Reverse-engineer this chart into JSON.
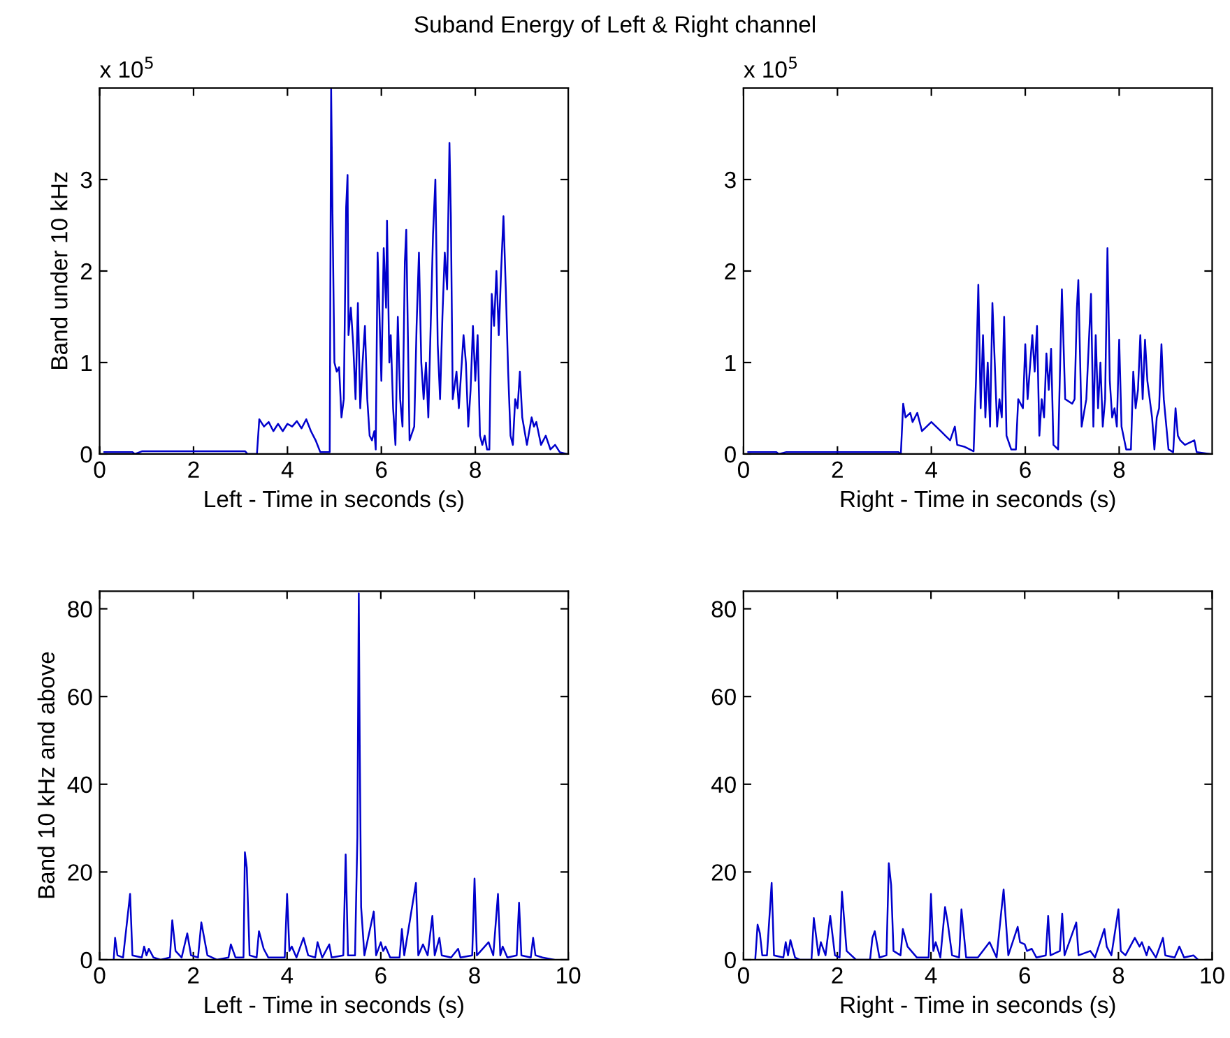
{
  "chart_data": [
    {
      "type": "line",
      "title": "Suband Energy of Left & Right channel",
      "xlabel": "Left - Time in seconds (s)",
      "ylabel": "Band under 10 kHz",
      "annotations": [
        "x 10$^{5}$"
      ],
      "series": [
        {
          "color": "#0000cc",
          "x": [
            0.1,
            0.7,
            0.75,
            0.9,
            3.1,
            3.15,
            3.35,
            3.4,
            3.5,
            3.6,
            3.7,
            3.8,
            3.9,
            4.0,
            4.1,
            4.2,
            4.3,
            4.4,
            4.5,
            4.6,
            4.7,
            4.9,
            4.93,
            4.96,
            5.0,
            5.05,
            5.1,
            5.15,
            5.2,
            5.25,
            5.28,
            5.3,
            5.35,
            5.4,
            5.45,
            5.5,
            5.55,
            5.6,
            5.65,
            5.7,
            5.75,
            5.8,
            5.85,
            5.88,
            5.92,
            5.95,
            6.0,
            6.05,
            6.1,
            6.12,
            6.17,
            6.2,
            6.25,
            6.3,
            6.35,
            6.4,
            6.45,
            6.5,
            6.53,
            6.58,
            6.6,
            6.7,
            6.75,
            6.8,
            6.85,
            6.9,
            6.95,
            7.0,
            7.1,
            7.15,
            7.2,
            7.25,
            7.3,
            7.35,
            7.4,
            7.45,
            7.48,
            7.52,
            7.6,
            7.65,
            7.75,
            7.8,
            7.85,
            7.9,
            7.95,
            8.0,
            8.05,
            8.1,
            8.15,
            8.2,
            8.25,
            8.3,
            8.35,
            8.4,
            8.45,
            8.5,
            8.55,
            8.6,
            8.65,
            8.7,
            8.75,
            8.8,
            8.85,
            8.9,
            8.95,
            9.0,
            9.1,
            9.2,
            9.25,
            9.3,
            9.4,
            9.5,
            9.6,
            9.7,
            9.8,
            9.95
          ],
          "values": [
            0.02,
            0.02,
            0,
            0.03,
            0.03,
            0,
            0,
            0.38,
            0.3,
            0.35,
            0.25,
            0.33,
            0.25,
            0.33,
            0.3,
            0.36,
            0.28,
            0.38,
            0.25,
            0.15,
            0.02,
            0.02,
            3.99,
            2.6,
            1.0,
            0.9,
            0.95,
            0.4,
            0.6,
            2.7,
            3.05,
            1.3,
            1.6,
            1.2,
            0.6,
            1.65,
            0.5,
            1.0,
            1.4,
            0.6,
            0.2,
            0.15,
            0.25,
            0.05,
            2.2,
            1.7,
            0.8,
            2.25,
            1.6,
            2.55,
            1.0,
            1.3,
            0.5,
            0.1,
            1.5,
            0.6,
            0.3,
            2.1,
            2.45,
            0.8,
            0.15,
            0.3,
            1.4,
            2.2,
            1.0,
            0.6,
            1.0,
            0.4,
            2.4,
            3.0,
            1.2,
            0.6,
            1.5,
            2.2,
            1.8,
            3.4,
            2.6,
            0.6,
            0.9,
            0.5,
            1.3,
            1.0,
            0.3,
            0.7,
            1.4,
            0.8,
            1.3,
            0.2,
            0.1,
            0.2,
            0.05,
            0.05,
            1.75,
            1.4,
            2.0,
            1.3,
            2.0,
            2.6,
            1.8,
            0.9,
            0.2,
            0.1,
            0.6,
            0.5,
            0.9,
            0.4,
            0.1,
            0.4,
            0.3,
            0.35,
            0.1,
            0.2,
            0.05,
            0.1,
            0.02,
            0
          ]
        }
      ],
      "xlim": [
        0,
        9.98
      ],
      "xticks": [
        0,
        2,
        4,
        6,
        8
      ],
      "ylim": [
        0,
        4
      ],
      "yticks": [
        0,
        1,
        2,
        3
      ],
      "grid": false
    },
    {
      "type": "line",
      "xlabel": "Right - Time in seconds (s)",
      "annotations": [
        "x 10$^{5}$"
      ],
      "series": [
        {
          "color": "#0000cc",
          "x": [
            0.1,
            0.7,
            0.75,
            0.9,
            3.2,
            3.3,
            3.35,
            3.4,
            3.45,
            3.55,
            3.6,
            3.7,
            3.8,
            3.9,
            4.0,
            4.1,
            4.2,
            4.3,
            4.4,
            4.5,
            4.55,
            4.7,
            4.9,
            4.95,
            5.0,
            5.05,
            5.1,
            5.15,
            5.2,
            5.25,
            5.3,
            5.35,
            5.4,
            5.45,
            5.5,
            5.55,
            5.6,
            5.7,
            5.8,
            5.85,
            5.95,
            6.0,
            6.05,
            6.15,
            6.2,
            6.25,
            6.3,
            6.35,
            6.4,
            6.45,
            6.5,
            6.55,
            6.6,
            6.7,
            6.78,
            6.85,
            7.0,
            7.05,
            7.1,
            7.13,
            7.2,
            7.3,
            7.4,
            7.45,
            7.5,
            7.55,
            7.6,
            7.65,
            7.7,
            7.75,
            7.8,
            7.85,
            7.9,
            7.95,
            8.0,
            8.05,
            8.15,
            8.25,
            8.3,
            8.35,
            8.4,
            8.45,
            8.5,
            8.55,
            8.6,
            8.7,
            8.75,
            8.8,
            8.85,
            8.9,
            8.95,
            9.05,
            9.15,
            9.2,
            9.25,
            9.3,
            9.4,
            9.6,
            9.65,
            9.95
          ],
          "values": [
            0.02,
            0.02,
            0,
            0.02,
            0.02,
            0.02,
            0,
            0.55,
            0.4,
            0.45,
            0.35,
            0.45,
            0.25,
            0.3,
            0.35,
            0.3,
            0.25,
            0.2,
            0.15,
            0.3,
            0.1,
            0.08,
            0.03,
            0.8,
            1.85,
            0.5,
            1.3,
            0.4,
            1.0,
            0.3,
            1.65,
            1.0,
            0.3,
            0.6,
            0.4,
            1.5,
            0.2,
            0.05,
            0.05,
            0.6,
            0.5,
            1.2,
            0.6,
            1.3,
            0.9,
            1.4,
            0.2,
            0.6,
            0.4,
            1.1,
            0.7,
            1.15,
            0.1,
            0.05,
            1.8,
            0.6,
            0.55,
            0.6,
            1.6,
            1.9,
            0.3,
            0.6,
            1.75,
            0.3,
            1.3,
            0.5,
            1.0,
            0.3,
            0.6,
            2.25,
            0.8,
            0.4,
            0.5,
            0.3,
            1.25,
            0.3,
            0.05,
            0.05,
            0.9,
            0.5,
            0.7,
            1.3,
            0.6,
            1.25,
            0.8,
            0.4,
            0.05,
            0.4,
            0.5,
            1.2,
            0.6,
            0.05,
            0.02,
            0.5,
            0.2,
            0.15,
            0.1,
            0.15,
            0.02,
            0
          ]
        }
      ],
      "xlim": [
        0,
        9.98
      ],
      "xticks": [
        0,
        2,
        4,
        6,
        8
      ],
      "ylim": [
        0,
        4
      ],
      "yticks": [
        0,
        1,
        2,
        3
      ],
      "grid": false
    },
    {
      "type": "line",
      "xlabel": "Left - Time in seconds (s)",
      "ylabel": "Band 10 kHz and above",
      "series": [
        {
          "color": "#0000cc",
          "x": [
            0.3,
            0.33,
            0.38,
            0.5,
            0.65,
            0.7,
            0.9,
            0.95,
            1.0,
            1.05,
            1.15,
            1.3,
            1.5,
            1.55,
            1.62,
            1.75,
            1.87,
            1.95,
            2.1,
            2.17,
            2.3,
            2.5,
            2.75,
            2.8,
            2.9,
            3.07,
            3.1,
            3.14,
            3.2,
            3.35,
            3.4,
            3.5,
            3.6,
            3.95,
            4.0,
            4.05,
            4.1,
            4.2,
            4.35,
            4.45,
            4.6,
            4.65,
            4.75,
            4.9,
            4.95,
            5.2,
            5.25,
            5.3,
            5.45,
            5.5,
            5.53,
            5.55,
            5.58,
            5.65,
            5.85,
            5.9,
            6.0,
            6.05,
            6.1,
            6.2,
            6.4,
            6.45,
            6.5,
            6.75,
            6.8,
            6.9,
            7.0,
            7.1,
            7.15,
            7.25,
            7.3,
            7.5,
            7.65,
            7.7,
            7.95,
            8.0,
            8.05,
            8.3,
            8.4,
            8.5,
            8.55,
            8.6,
            8.7,
            8.9,
            8.95,
            9.0,
            9.2,
            9.25,
            9.3,
            9.45,
            9.7
          ],
          "values": [
            0,
            5,
            1,
            0.5,
            15,
            1,
            0.5,
            3,
            1,
            2.5,
            0.5,
            0,
            0.5,
            9,
            2,
            0.5,
            6,
            1,
            0.5,
            8.5,
            1,
            0,
            0.5,
            3.5,
            0.5,
            0.5,
            24.5,
            21,
            1,
            0.5,
            6.5,
            2.5,
            0.5,
            0.5,
            15,
            2,
            3,
            0.5,
            5,
            1,
            0.5,
            4,
            0.5,
            3.5,
            0.5,
            1,
            24,
            1,
            1,
            28,
            83.5,
            49,
            12,
            1,
            11,
            1,
            4,
            2,
            3,
            0.5,
            0.5,
            7,
            1,
            17.5,
            1,
            3.5,
            1,
            10,
            1,
            5,
            1,
            0.5,
            2.5,
            0.5,
            1,
            18.5,
            1,
            4,
            1,
            15,
            1,
            3,
            0.5,
            1,
            13,
            1,
            0.5,
            5,
            1,
            0.5,
            0
          ]
        }
      ],
      "xlim": [
        0,
        10
      ],
      "xticks": [
        0,
        2,
        4,
        6,
        8,
        10
      ],
      "ylim": [
        0,
        84
      ],
      "yticks": [
        0,
        20,
        40,
        60,
        80
      ],
      "grid": false
    },
    {
      "type": "line",
      "xlabel": "Right - Time in seconds (s)",
      "series": [
        {
          "color": "#0000cc",
          "x": [
            0.25,
            0.3,
            0.35,
            0.4,
            0.5,
            0.6,
            0.65,
            0.85,
            0.9,
            0.95,
            1.0,
            1.1,
            1.2,
            1.45,
            1.5,
            1.6,
            1.65,
            1.75,
            1.85,
            1.95,
            2.05,
            2.1,
            2.2,
            2.4,
            2.7,
            2.75,
            2.8,
            2.9,
            3.05,
            3.1,
            3.15,
            3.2,
            3.35,
            3.4,
            3.5,
            3.7,
            3.95,
            4.0,
            4.05,
            4.1,
            4.2,
            4.3,
            4.35,
            4.45,
            4.6,
            4.65,
            4.75,
            5.0,
            5.25,
            5.4,
            5.5,
            5.55,
            5.65,
            5.85,
            5.9,
            6.0,
            6.05,
            6.15,
            6.25,
            6.45,
            6.5,
            6.55,
            6.75,
            6.8,
            6.85,
            7.1,
            7.15,
            7.4,
            7.5,
            7.7,
            7.75,
            7.85,
            8.0,
            8.05,
            8.15,
            8.35,
            8.45,
            8.5,
            8.6,
            8.65,
            8.8,
            8.95,
            9.0,
            9.2,
            9.3,
            9.4,
            9.6,
            9.7
          ],
          "values": [
            0,
            8,
            6,
            1,
            1,
            17.5,
            1,
            0.5,
            4,
            1,
            4.5,
            0.5,
            0,
            0,
            9.5,
            1,
            4,
            1,
            10,
            1,
            0.5,
            15.5,
            2,
            0,
            0,
            5,
            6.5,
            0.5,
            1,
            22,
            17,
            2,
            1,
            7,
            3,
            0.5,
            0.5,
            15,
            2,
            4,
            0.5,
            12,
            9,
            1,
            0.5,
            11.5,
            0.5,
            0.5,
            4,
            0.5,
            11,
            16,
            1,
            7.5,
            4,
            3.5,
            2,
            2.5,
            0.5,
            1,
            10,
            1,
            2,
            10.5,
            1,
            8.5,
            1,
            2,
            0.5,
            7,
            3,
            1,
            11.5,
            2,
            1,
            5,
            3,
            4,
            1,
            3,
            0.5,
            5,
            1,
            0.5,
            3,
            0.5,
            1,
            0
          ]
        }
      ],
      "xlim": [
        0,
        10
      ],
      "xticks": [
        0,
        2,
        4,
        6,
        8,
        10
      ],
      "ylim": [
        0,
        84
      ],
      "yticks": [
        0,
        20,
        40,
        60,
        80
      ],
      "grid": false
    }
  ]
}
